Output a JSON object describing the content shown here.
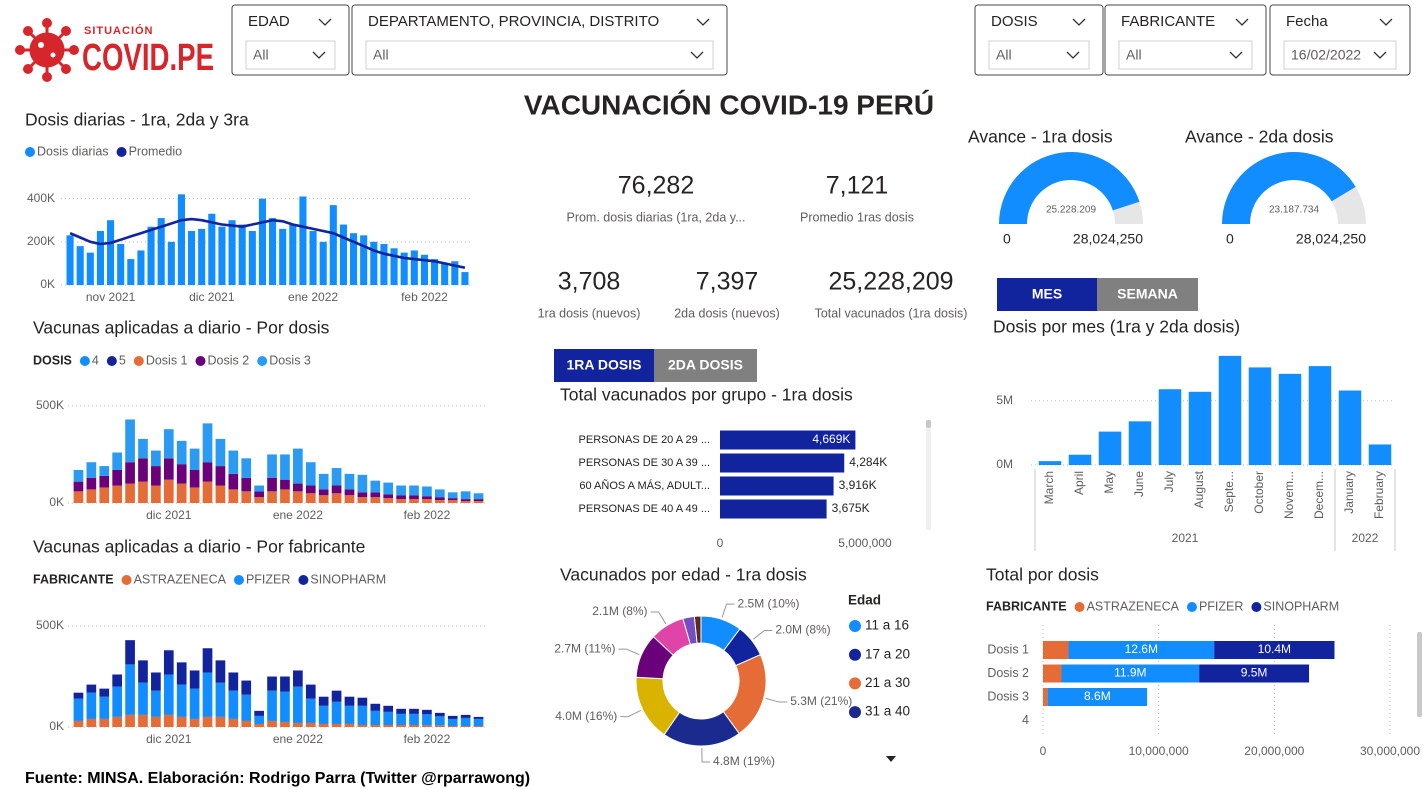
{
  "header": {
    "logo_top": "SITUACIÓN",
    "logo_main": "COVID.PE",
    "title": "VACUNACIÓN COVID-19 PERÚ"
  },
  "filters": [
    {
      "label": "EDAD",
      "value": "All"
    },
    {
      "label": "DEPARTAMENTO, PROVINCIA, DISTRITO",
      "value": "All"
    },
    {
      "label": "DOSIS",
      "value": "All"
    },
    {
      "label": "FABRICANTE",
      "value": "All"
    },
    {
      "label": "Fecha",
      "value": "16/02/2022"
    }
  ],
  "kpis": [
    {
      "value": "76,282",
      "label": "Prom. dosis diarias (1ra, 2da y..."
    },
    {
      "value": "7,121",
      "label": "Promedio 1ras dosis"
    },
    {
      "value": "3,708",
      "label": "1ra dosis (nuevos)"
    },
    {
      "value": "7,397",
      "label": "2da dosis (nuevos)"
    },
    {
      "value": "25,228,209",
      "label": "Total vacunados (1ra dosis)"
    }
  ],
  "toggles": [
    {
      "options": [
        "MES",
        "SEMANA"
      ]
    },
    {
      "options": [
        "1RA DOSIS",
        "2DA DOSIS"
      ]
    }
  ],
  "footer": "Fuente: MINSA. Elaboración: Rodrigo Parra (Twitter @rparrawong)",
  "chart_data": [
    {
      "type": "bar",
      "title": "Dosis diarias - 1ra, 2da y 3ra",
      "categories": [
        null,
        null,
        null,
        null,
        "nov 2021",
        null,
        null,
        null,
        null,
        null,
        null,
        null,
        null,
        null,
        "dic 2021",
        null,
        null,
        null,
        null,
        null,
        null,
        null,
        null,
        null,
        "ene 2022",
        null,
        null,
        null,
        null,
        null,
        null,
        null,
        null,
        null,
        null,
        "feb 2022",
        null,
        null,
        null,
        null
      ],
      "series": [
        {
          "name": "Dosis diarias",
          "color": "#118dff",
          "values": [
            230000,
            180000,
            150000,
            250000,
            300000,
            190000,
            120000,
            160000,
            270000,
            310000,
            200000,
            420000,
            250000,
            260000,
            330000,
            270000,
            300000,
            280000,
            250000,
            400000,
            310000,
            260000,
            280000,
            410000,
            250000,
            200000,
            370000,
            280000,
            240000,
            230000,
            200000,
            190000,
            170000,
            150000,
            160000,
            140000,
            120000,
            100000,
            110000,
            60000
          ]
        },
        {
          "name": "Promedio",
          "type": "line",
          "color": "#12239e",
          "values": [
            240000,
            220000,
            200000,
            190000,
            195000,
            210000,
            225000,
            240000,
            255000,
            270000,
            285000,
            300000,
            305000,
            300000,
            290000,
            280000,
            275000,
            270000,
            280000,
            290000,
            300000,
            295000,
            280000,
            270000,
            260000,
            250000,
            240000,
            220000,
            200000,
            180000,
            160000,
            145000,
            135000,
            125000,
            120000,
            115000,
            110000,
            100000,
            90000,
            80000
          ]
        }
      ],
      "ylim": [
        0,
        440000
      ],
      "yticks": [
        {
          "value": 0,
          "label": "0K"
        },
        {
          "value": 200000,
          "label": "200K"
        },
        {
          "value": 400000,
          "label": "400K"
        }
      ],
      "grid": true
    },
    {
      "type": "bar",
      "stacked": true,
      "title": "Vacunas aplicadas a diario - Por dosis",
      "legend_title": "DOSIS",
      "categories": [
        null,
        null,
        null,
        null,
        null,
        null,
        null,
        "dic 2021",
        null,
        null,
        null,
        null,
        null,
        null,
        null,
        null,
        null,
        "ene 2022",
        null,
        null,
        null,
        null,
        null,
        null,
        null,
        null,
        null,
        "feb 2022",
        null,
        null,
        null,
        null
      ],
      "series": [
        {
          "name": "4",
          "color": "#118dff",
          "values": [
            0,
            0,
            0,
            0,
            0,
            0,
            0,
            0,
            0,
            0,
            0,
            0,
            0,
            0,
            0,
            0,
            0,
            0,
            0,
            0,
            0,
            0,
            0,
            0,
            0,
            0,
            0,
            0,
            0,
            0,
            0,
            0
          ]
        },
        {
          "name": "5",
          "color": "#12239e",
          "values": [
            0,
            0,
            0,
            0,
            0,
            0,
            0,
            0,
            0,
            0,
            0,
            0,
            0,
            0,
            0,
            0,
            0,
            0,
            0,
            0,
            0,
            0,
            0,
            0,
            0,
            0,
            0,
            0,
            0,
            0,
            0,
            0
          ]
        },
        {
          "name": "Dosis 1",
          "color": "#e66c37",
          "values": [
            60000,
            70000,
            80000,
            90000,
            100000,
            110000,
            90000,
            120000,
            100000,
            80000,
            110000,
            90000,
            70000,
            60000,
            30000,
            60000,
            70000,
            60000,
            50000,
            40000,
            50000,
            40000,
            30000,
            30000,
            25000,
            20000,
            20000,
            20000,
            15000,
            15000,
            10000,
            10000
          ]
        },
        {
          "name": "Dosis 2",
          "color": "#6b007b",
          "values": [
            50000,
            60000,
            60000,
            80000,
            110000,
            120000,
            100000,
            110000,
            100000,
            90000,
            100000,
            100000,
            80000,
            70000,
            30000,
            70000,
            50000,
            40000,
            40000,
            30000,
            40000,
            30000,
            25000,
            25000,
            20000,
            20000,
            20000,
            15000,
            15000,
            10000,
            10000,
            10000
          ]
        },
        {
          "name": "Dosis 3",
          "color": "#2b9af3",
          "values": [
            60000,
            80000,
            50000,
            90000,
            220000,
            100000,
            80000,
            150000,
            120000,
            110000,
            200000,
            140000,
            120000,
            100000,
            30000,
            120000,
            130000,
            180000,
            120000,
            80000,
            90000,
            80000,
            90000,
            60000,
            60000,
            50000,
            50000,
            50000,
            40000,
            30000,
            40000,
            30000
          ]
        }
      ],
      "ylim": [
        0,
        520000
      ],
      "yticks": [
        {
          "value": 0,
          "label": "0K"
        },
        {
          "value": 500000,
          "label": "500K"
        }
      ],
      "grid": true
    },
    {
      "type": "bar",
      "stacked": true,
      "title": "Vacunas aplicadas a diario - Por fabricante",
      "legend_title": "FABRICANTE",
      "categories": [
        null,
        null,
        null,
        null,
        null,
        null,
        null,
        "dic 2021",
        null,
        null,
        null,
        null,
        null,
        null,
        null,
        null,
        null,
        "ene 2022",
        null,
        null,
        null,
        null,
        null,
        null,
        null,
        null,
        null,
        "feb 2022",
        null,
        null,
        null,
        null
      ],
      "series": [
        {
          "name": "ASTRAZENECA",
          "color": "#e66c37",
          "values": [
            30000,
            40000,
            40000,
            50000,
            60000,
            60000,
            50000,
            60000,
            50000,
            40000,
            50000,
            50000,
            40000,
            30000,
            15000,
            30000,
            25000,
            20000,
            20000,
            15000,
            15000,
            15000,
            10000,
            10000,
            10000,
            10000,
            10000,
            8000,
            8000,
            5000,
            5000,
            5000
          ]
        },
        {
          "name": "PFIZER",
          "color": "#118dff",
          "values": [
            110000,
            130000,
            110000,
            150000,
            250000,
            160000,
            130000,
            200000,
            160000,
            150000,
            220000,
            170000,
            140000,
            130000,
            40000,
            150000,
            150000,
            180000,
            120000,
            90000,
            110000,
            90000,
            95000,
            70000,
            65000,
            55000,
            55000,
            55000,
            45000,
            35000,
            40000,
            35000
          ]
        },
        {
          "name": "SINOPHARM",
          "color": "#12239e",
          "values": [
            30000,
            40000,
            40000,
            60000,
            120000,
            110000,
            90000,
            120000,
            110000,
            90000,
            120000,
            110000,
            90000,
            70000,
            25000,
            70000,
            75000,
            80000,
            70000,
            45000,
            55000,
            45000,
            40000,
            35000,
            30000,
            25000,
            25000,
            22000,
            17000,
            15000,
            15000,
            10000
          ]
        }
      ],
      "ylim": [
        0,
        520000
      ],
      "yticks": [
        {
          "value": 0,
          "label": "0K"
        },
        {
          "value": 500000,
          "label": "500K"
        }
      ],
      "grid": true
    },
    {
      "type": "gauge",
      "title": "Avance - 1ra dosis",
      "value": 25228209,
      "value_label": "25.228.209",
      "ylim": [
        0,
        28024250
      ],
      "yticks": [
        0,
        {
          "value": 28024250,
          "label": "28,024,250"
        }
      ],
      "color": "#118dff",
      "track_color": "#e6e6e6"
    },
    {
      "type": "gauge",
      "title": "Avance - 2da dosis",
      "value": 23187734,
      "value_label": "23.187.734",
      "ylim": [
        0,
        28024250
      ],
      "yticks": [
        0,
        {
          "value": 28024250,
          "label": "28,024,250"
        }
      ],
      "color": "#118dff",
      "track_color": "#e6e6e6"
    },
    {
      "type": "hbar",
      "title": "Total vacunados por grupo - 1ra dosis",
      "categories": [
        "PERSONAS DE 20 A 29 ...",
        "PERSONAS DE 30 A 39 ...",
        "60 AÑOS A MÁS, ADULT...",
        "PERSONAS DE 40 A 49 ..."
      ],
      "values": [
        4669000,
        4284000,
        3916000,
        3675000
      ],
      "value_labels": [
        "4,669K",
        "4,284K",
        "3,916K",
        "3,675K"
      ],
      "color": "#12239e",
      "xlim": [
        0,
        5000000
      ],
      "xticks": [
        0,
        {
          "value": 5000000,
          "label": "5,000,000"
        }
      ]
    },
    {
      "type": "donut",
      "title": "Vacunados por edad - 1ra dosis",
      "legend_title": "Edad",
      "categories": [
        "11 a 16",
        "17 a 20",
        "21 a 30",
        "31 a 40",
        null,
        null,
        null,
        null,
        null
      ],
      "values": [
        2500000,
        2000000,
        5300000,
        4800000,
        4000000,
        2700000,
        2100000,
        700000,
        400000
      ],
      "value_labels": [
        "2.5M (10%)",
        "2.0M (8%)",
        "5.3M (21%)",
        "4.8M (19%)",
        "4.0M (16%)",
        "2.7M (11%)",
        "2.1M (8%)",
        null,
        null
      ],
      "colors": [
        "#118dff",
        "#12239e",
        "#e66c37",
        "#1b2a8f",
        "#d9b300",
        "#6b007b",
        "#e044a7",
        "#744ec2",
        "#5c2a1e"
      ]
    },
    {
      "type": "bar",
      "title": "Dosis por mes (1ra y 2da dosis)",
      "categories": [
        "March",
        "April",
        "May",
        "June",
        "July",
        "August",
        "Septe...",
        "October",
        "Novem...",
        "Decem...",
        "January",
        "February"
      ],
      "values": [
        300000,
        800000,
        2600000,
        3400000,
        5900000,
        5700000,
        8500000,
        7600000,
        7100000,
        7700000,
        5800000,
        1600000
      ],
      "color": "#118dff",
      "category_groups": [
        {
          "label": "2021",
          "span": 10
        },
        {
          "label": "2022",
          "span": 2
        }
      ],
      "ylim": [
        0,
        8800000
      ],
      "yticks": [
        {
          "value": 0,
          "label": "0M"
        },
        {
          "value": 5000000,
          "label": "5M"
        }
      ],
      "grid": true
    },
    {
      "type": "hbar",
      "stacked": true,
      "title": "Total por dosis",
      "legend_title": "FABRICANTE",
      "categories": [
        "Dosis 1",
        "Dosis 2",
        "Dosis 3",
        "4"
      ],
      "series": [
        {
          "name": "ASTRAZENECA",
          "color": "#e66c37",
          "values": [
            2200000,
            1600000,
            400000,
            0
          ],
          "value_labels": [
            null,
            null,
            null,
            null
          ]
        },
        {
          "name": "PFIZER",
          "color": "#118dff",
          "values": [
            12600000,
            11900000,
            8600000,
            0
          ],
          "value_labels": [
            "12.6M",
            "11.9M",
            "8.6M",
            null
          ]
        },
        {
          "name": "SINOPHARM",
          "color": "#12239e",
          "values": [
            10400000,
            9500000,
            0,
            0
          ],
          "value_labels": [
            "10.4M",
            "9.5M",
            null,
            null
          ]
        }
      ],
      "xlim": [
        0,
        30000000
      ],
      "xticks": [
        0,
        {
          "value": 10000000,
          "label": "10,000,000"
        },
        {
          "value": 20000000,
          "label": "20,000,000"
        },
        {
          "value": 30000000,
          "label": "30,000,000"
        }
      ],
      "grid": true
    }
  ]
}
